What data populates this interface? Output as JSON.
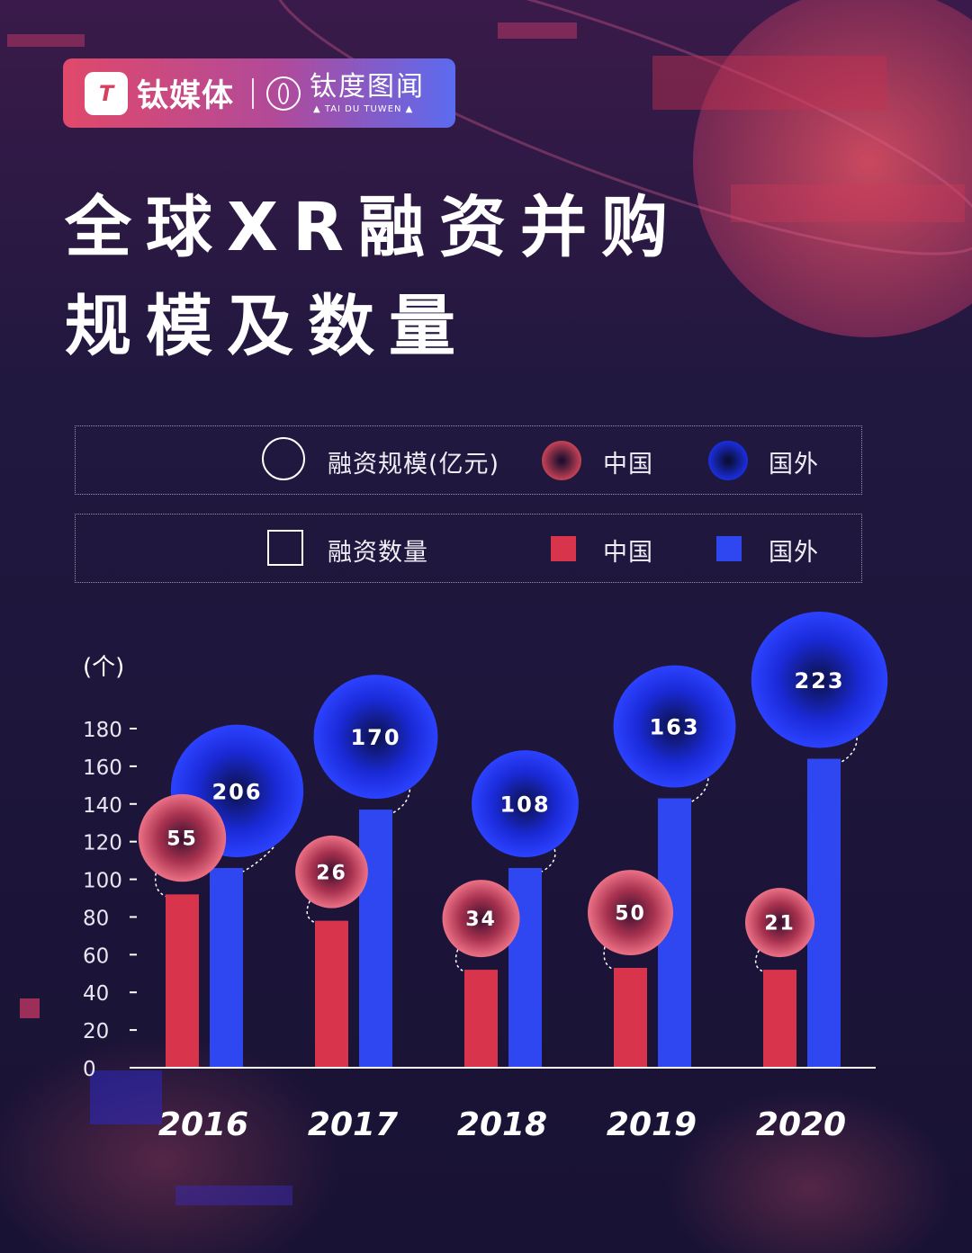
{
  "header": {
    "brand_name": "钛媒体",
    "brand_logo_text": "T",
    "sub_brand_cn": "钛度图闻",
    "sub_brand_en": "▲ TAI DU TUWEN ▲"
  },
  "title_line1": "全球XR融资并购",
  "title_line2": "规模及数量",
  "legend": {
    "scale_label": "融资规模(亿元)",
    "count_label": "融资数量",
    "china": "中国",
    "foreign": "国外"
  },
  "colors": {
    "china": "#d8354c",
    "foreign": "#2f47f0",
    "background": "#1b1536"
  },
  "chart_data": {
    "type": "bar",
    "y_unit_label": "(个)",
    "ylim": [
      0,
      180
    ],
    "y_ticks": [
      0,
      20,
      40,
      60,
      80,
      100,
      120,
      140,
      160,
      180
    ],
    "categories": [
      "2016",
      "2017",
      "2018",
      "2019",
      "2020"
    ],
    "series": [
      {
        "name": "中国",
        "measure": "融资数量",
        "values": [
          92,
          78,
          52,
          53,
          52
        ]
      },
      {
        "name": "国外",
        "measure": "融资数量",
        "values": [
          106,
          137,
          106,
          143,
          164
        ]
      }
    ],
    "bubbles": [
      {
        "name": "中国",
        "measure": "融资规模(亿元)",
        "values": [
          55,
          26,
          34,
          50,
          21
        ]
      },
      {
        "name": "国外",
        "measure": "融资规模(亿元)",
        "values": [
          206,
          170,
          108,
          163,
          223
        ]
      }
    ]
  }
}
